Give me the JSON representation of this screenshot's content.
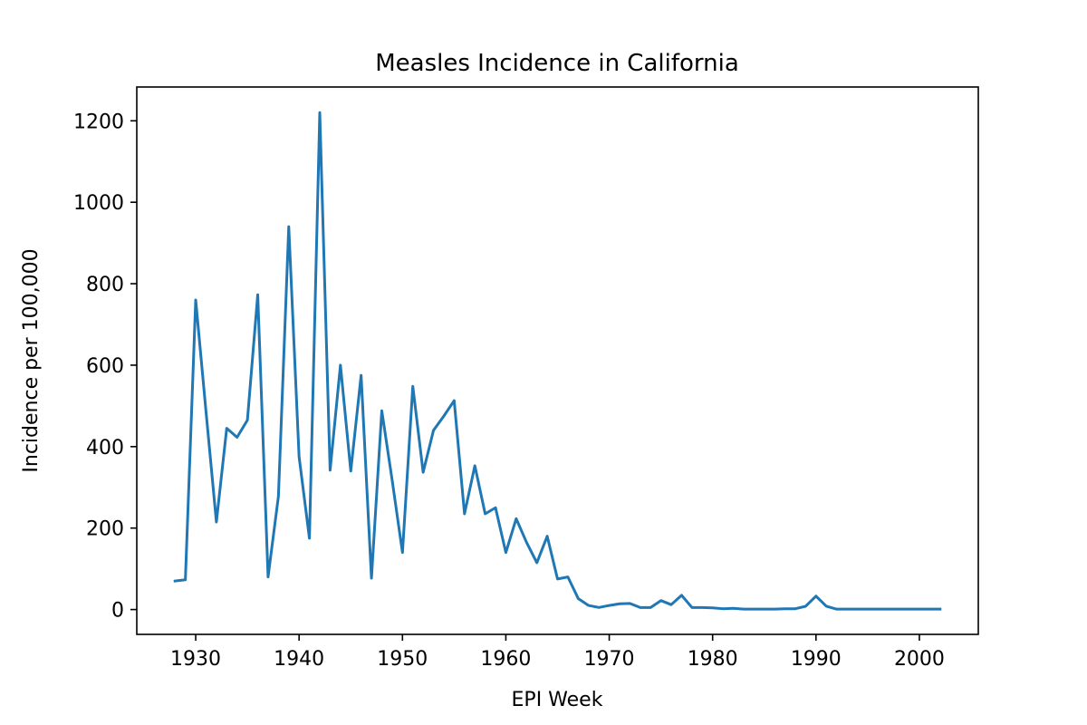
{
  "chart_data": {
    "type": "line",
    "title": "Measles Incidence in California",
    "xlabel": "EPI Week",
    "ylabel": "Incidence per 100,000",
    "xlim": [
      1924.3,
      2005.7
    ],
    "ylim": [
      -61,
      1283
    ],
    "x_ticks": [
      1930,
      1940,
      1950,
      1960,
      1970,
      1980,
      1990,
      2000
    ],
    "y_ticks": [
      0,
      200,
      400,
      600,
      800,
      1000,
      1200
    ],
    "x_tick_labels": [
      "1930",
      "1940",
      "1950",
      "1960",
      "1970",
      "1980",
      "1990",
      "2000"
    ],
    "y_tick_labels": [
      "0",
      "200",
      "400",
      "600",
      "800",
      "1000",
      "1200"
    ],
    "grid": false,
    "legend": "none",
    "series": [
      {
        "color": "#1f77b4",
        "x": [
          1928,
          1929,
          1930,
          1931,
          1932,
          1933,
          1934,
          1935,
          1936,
          1937,
          1938,
          1939,
          1940,
          1941,
          1942,
          1943,
          1944,
          1945,
          1946,
          1947,
          1948,
          1949,
          1950,
          1951,
          1952,
          1953,
          1954,
          1955,
          1956,
          1957,
          1958,
          1959,
          1960,
          1961,
          1962,
          1963,
          1964,
          1965,
          1966,
          1967,
          1968,
          1969,
          1970,
          1971,
          1972,
          1973,
          1974,
          1975,
          1976,
          1977,
          1978,
          1979,
          1980,
          1981,
          1982,
          1983,
          1984,
          1985,
          1986,
          1987,
          1988,
          1989,
          1990,
          1991,
          1992,
          1993,
          1994,
          1995,
          1996,
          1997,
          1998,
          1999,
          2000,
          2001,
          2002
        ],
        "y": [
          70,
          73,
          760,
          485,
          215,
          445,
          423,
          465,
          773,
          80,
          278,
          940,
          375,
          175,
          1220,
          342,
          600,
          340,
          575,
          77,
          488,
          318,
          140,
          548,
          337,
          440,
          475,
          513,
          235,
          353,
          235,
          250,
          140,
          223,
          165,
          115,
          180,
          75,
          80,
          27,
          10,
          5,
          10,
          14,
          15,
          5,
          5,
          22,
          12,
          35,
          5,
          5,
          4,
          2,
          3,
          1,
          1,
          1,
          1,
          2,
          2,
          8,
          33,
          8,
          1,
          1,
          1,
          1,
          1,
          1,
          1,
          1,
          1,
          1,
          1
        ]
      }
    ]
  }
}
